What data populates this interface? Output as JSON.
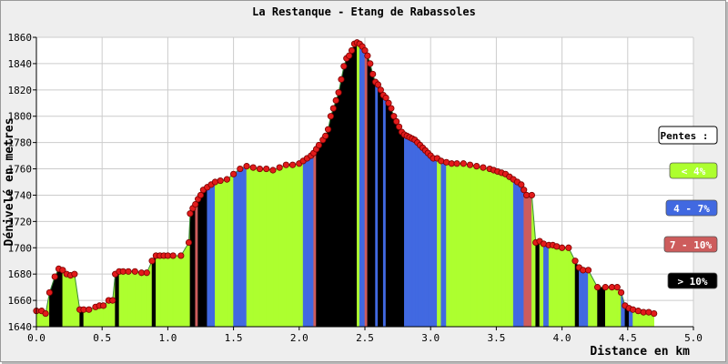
{
  "colors": {
    "frame_bg": "#eeeeee",
    "plot_bg": "#ffffff",
    "grid": "#cccccc",
    "profile_line": "#3a8a3a",
    "point_fill": "#e21b1b",
    "point_stroke": "#7a0000",
    "slope_lt4": "#adff2f",
    "slope_4_7": "#4169e1",
    "slope_7_10": "#cd5c5c",
    "slope_gt10": "#000000"
  },
  "chart_data": {
    "type": "area",
    "title": "La Restanque - Etang de Rabassoles",
    "xlabel": "Distance en km",
    "ylabel": "Dénivelé en metres",
    "xlim": [
      0,
      5
    ],
    "ylim": [
      1640,
      1860
    ],
    "xticks": [
      "0.0",
      "0.5",
      "1.0",
      "1.5",
      "2.0",
      "2.5",
      "3.0",
      "3.5",
      "4.0",
      "4.5",
      "5.0"
    ],
    "yticks": [
      "1640",
      "1660",
      "1680",
      "1700",
      "1720",
      "1740",
      "1760",
      "1780",
      "1800",
      "1820",
      "1840",
      "1860"
    ],
    "grid": true,
    "legend_position": "right",
    "legend": {
      "title": "Pentes :",
      "items": [
        {
          "label": "< 4%",
          "color": "#adff2f",
          "text_color": "#ffffff"
        },
        {
          "label": "4 - 7%",
          "color": "#4169e1",
          "text_color": "#ffffff"
        },
        {
          "label": "7 - 10%",
          "color": "#cd5c5c",
          "text_color": "#ffffff"
        },
        {
          "label": "> 10%",
          "color": "#000000",
          "text_color": "#ffffff"
        }
      ]
    },
    "x": [
      0.0,
      0.04,
      0.07,
      0.1,
      0.14,
      0.17,
      0.2,
      0.23,
      0.26,
      0.29,
      0.33,
      0.36,
      0.4,
      0.45,
      0.48,
      0.51,
      0.55,
      0.58,
      0.6,
      0.63,
      0.66,
      0.7,
      0.75,
      0.8,
      0.84,
      0.88,
      0.91,
      0.94,
      0.97,
      1.0,
      1.04,
      1.1,
      1.16,
      1.17,
      1.19,
      1.21,
      1.23,
      1.25,
      1.27,
      1.3,
      1.33,
      1.36,
      1.4,
      1.45,
      1.5,
      1.55,
      1.6,
      1.65,
      1.7,
      1.75,
      1.8,
      1.85,
      1.9,
      1.95,
      2.0,
      2.03,
      2.06,
      2.09,
      2.11,
      2.13,
      2.15,
      2.18,
      2.2,
      2.22,
      2.24,
      2.26,
      2.28,
      2.3,
      2.32,
      2.34,
      2.36,
      2.38,
      2.4,
      2.42,
      2.44,
      2.46,
      2.48,
      2.5,
      2.52,
      2.54,
      2.56,
      2.58,
      2.6,
      2.62,
      2.64,
      2.66,
      2.68,
      2.7,
      2.72,
      2.74,
      2.76,
      2.78,
      2.8,
      2.82,
      2.84,
      2.86,
      2.88,
      2.9,
      2.92,
      2.94,
      2.96,
      2.98,
      3.0,
      3.02,
      3.05,
      3.08,
      3.12,
      3.16,
      3.2,
      3.25,
      3.3,
      3.35,
      3.4,
      3.45,
      3.48,
      3.51,
      3.54,
      3.57,
      3.6,
      3.63,
      3.66,
      3.69,
      3.71,
      3.73,
      3.77,
      3.8,
      3.83,
      3.86,
      3.9,
      3.93,
      3.96,
      4.0,
      4.05,
      4.1,
      4.13,
      4.16,
      4.2,
      4.27,
      4.33,
      4.38,
      4.42,
      4.45,
      4.48,
      4.51,
      4.54,
      4.58,
      4.62,
      4.66,
      4.7
    ],
    "y": [
      1652,
      1652,
      1650,
      1666,
      1678,
      1684,
      1683,
      1680,
      1679,
      1680,
      1653,
      1653,
      1653,
      1655,
      1656,
      1656,
      1660,
      1660,
      1680,
      1682,
      1682,
      1682,
      1682,
      1681,
      1681,
      1690,
      1694,
      1694,
      1694,
      1694,
      1694,
      1694,
      1704,
      1726,
      1730,
      1733,
      1737,
      1740,
      1744,
      1746,
      1748,
      1750,
      1751,
      1752,
      1756,
      1760,
      1762,
      1761,
      1760,
      1760,
      1759,
      1761,
      1763,
      1763,
      1764,
      1766,
      1768,
      1770,
      1772,
      1775,
      1778,
      1782,
      1785,
      1790,
      1800,
      1806,
      1812,
      1818,
      1828,
      1838,
      1844,
      1846,
      1850,
      1855,
      1856,
      1855,
      1853,
      1850,
      1846,
      1840,
      1832,
      1826,
      1824,
      1820,
      1816,
      1814,
      1810,
      1806,
      1800,
      1796,
      1792,
      1788,
      1786,
      1785,
      1784,
      1783,
      1782,
      1780,
      1778,
      1776,
      1774,
      1772,
      1770,
      1768,
      1768,
      1766,
      1765,
      1764,
      1764,
      1764,
      1763,
      1762,
      1761,
      1760,
      1759,
      1758,
      1757,
      1756,
      1754,
      1752,
      1750,
      1748,
      1744,
      1740,
      1740,
      1704,
      1705,
      1703,
      1702,
      1702,
      1701,
      1700,
      1700,
      1690,
      1685,
      1683,
      1683,
      1670,
      1670,
      1670,
      1670,
      1666,
      1656,
      1654,
      1653,
      1652,
      1651,
      1651,
      1650
    ],
    "slope_classes": [
      "<4",
      "<4",
      "<4",
      ">10",
      ">10",
      ">10",
      "<4",
      "<4",
      "<4",
      "<4",
      ">10",
      "<4",
      "<4",
      "<4",
      "<4",
      "<4",
      "<4",
      "<4",
      ">10",
      "<4",
      "<4",
      "<4",
      "<4",
      "<4",
      "<4",
      ">10",
      "<4",
      "<4",
      "<4",
      "<4",
      "<4",
      "<4",
      "<4",
      ">10",
      ">10",
      "7-10",
      ">10",
      ">10",
      ">10",
      "4-7",
      "4-7",
      "<4",
      "<4",
      "<4",
      "4-7",
      "4-7",
      "<4",
      "<4",
      "<4",
      "<4",
      "<4",
      "<4",
      "<4",
      "<4",
      "<4",
      "4-7",
      "4-7",
      "4-7",
      "7-10",
      ">10",
      ">10",
      ">10",
      ">10",
      ">10",
      ">10",
      ">10",
      ">10",
      ">10",
      ">10",
      ">10",
      ">10",
      ">10",
      ">10",
      ">10",
      "<4",
      "4-7",
      "4-7",
      "7-10",
      ">10",
      ">10",
      ">10",
      "4-7",
      ">10",
      ">10",
      "4-7",
      ">10",
      ">10",
      ">10",
      ">10",
      ">10",
      ">10",
      ">10",
      "4-7",
      "4-7",
      "4-7",
      "4-7",
      "4-7",
      "4-7",
      "4-7",
      "4-7",
      "4-7",
      "4-7",
      "4-7",
      "4-7",
      "<4",
      "4-7",
      "<4",
      "<4",
      "<4",
      "<4",
      "<4",
      "<4",
      "<4",
      "<4",
      "<4",
      "<4",
      "<4",
      "<4",
      "<4",
      "4-7",
      "4-7",
      "4-7",
      "7-10",
      "7-10",
      "<4",
      ">10",
      "<4",
      "4-7",
      "<4",
      "<4",
      "<4",
      "<4",
      "<4",
      ">10",
      "4-7",
      "4-7",
      "<4",
      ">10",
      "<4",
      "<4",
      "<4",
      "4-7",
      ">10",
      "4-7",
      "<4",
      "<4",
      "<4",
      "<4",
      "<4"
    ]
  }
}
